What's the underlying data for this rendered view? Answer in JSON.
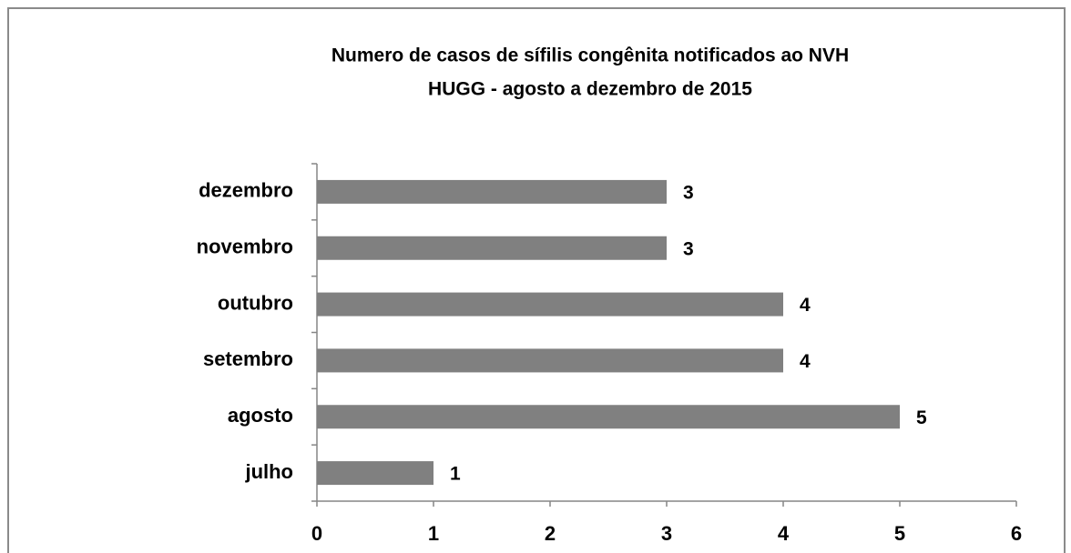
{
  "chart_data": {
    "type": "hbar",
    "title": "Numero de casos de sífilis congênita notificados ao NVH",
    "subtitle": "HUGG - agosto a dezembro de 2015",
    "categories": [
      "julho",
      "agosto",
      "setembro",
      "outubro",
      "novembro",
      "dezembro"
    ],
    "values": [
      1,
      5,
      4,
      4,
      3,
      3
    ],
    "color": "#808080",
    "xlim": [
      0,
      6
    ],
    "xticks": [
      0,
      1,
      2,
      3,
      4,
      5,
      6
    ],
    "grid": false
  }
}
